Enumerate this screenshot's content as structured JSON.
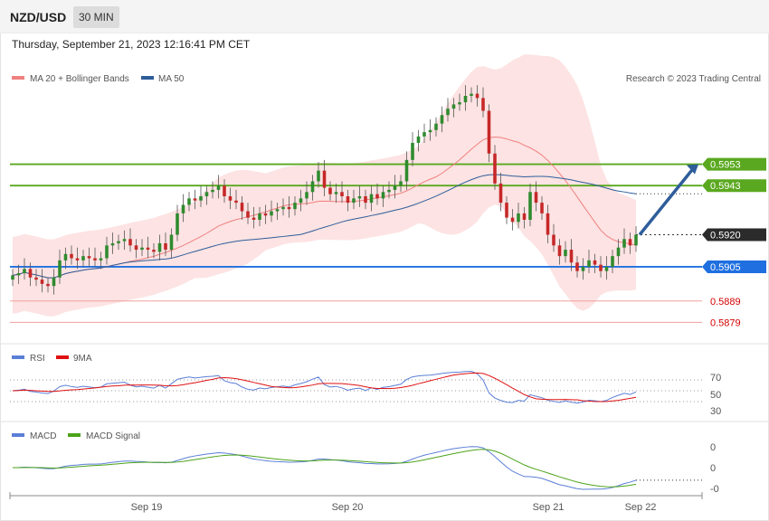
{
  "header": {
    "symbol": "NZD/USD",
    "interval": "30 MIN",
    "datetime": "Thursday, September 21, 2023 12:16:41 PM CET"
  },
  "main_legend": {
    "ma20_label": "MA 20 + Bollinger Bands",
    "ma50_label": "MA 50",
    "credit": "Research © 2023 Trading Central",
    "ma20_color": "#f08080",
    "ma50_color": "#2e5d9a"
  },
  "rsi_legend": {
    "rsi_label": "RSI",
    "ma_label": "9MA",
    "rsi_color": "#5b7fd6",
    "ma_color": "#e01010"
  },
  "macd_legend": {
    "macd_label": "MACD",
    "signal_label": "MACD Signal",
    "macd_color": "#5b7fd6",
    "signal_color": "#4ca31a"
  },
  "x_labels": [
    "Sep 19",
    "Sep 20",
    "Sep 21",
    "Sep 22"
  ],
  "levels": [
    {
      "value": "0.5953",
      "type": "resistance",
      "color": "#5aa81f"
    },
    {
      "value": "0.5943",
      "type": "resistance",
      "color": "#5aa81f"
    },
    {
      "value": "0.5920",
      "type": "last",
      "color": "#2b2b2b"
    },
    {
      "value": "0.5905",
      "type": "pivot",
      "color": "#1f6fe0"
    },
    {
      "value": "0.5889",
      "type": "support",
      "color": "#d40000"
    },
    {
      "value": "0.5879",
      "type": "support",
      "color": "#d40000"
    }
  ],
  "rsi_ticks": [
    "70",
    "50",
    "30"
  ],
  "macd_ticks": [
    "0",
    "0",
    "-0"
  ],
  "chart_data": {
    "type": "candlestick",
    "price": {
      "close": [
        0.5901,
        0.5902,
        0.5904,
        0.59,
        0.5899,
        0.5897,
        0.5896,
        0.59,
        0.5908,
        0.5911,
        0.5909,
        0.5908,
        0.591,
        0.5909,
        0.5908,
        0.5909,
        0.5915,
        0.5916,
        0.5917,
        0.5918,
        0.5915,
        0.5913,
        0.5914,
        0.5913,
        0.5912,
        0.5916,
        0.5913,
        0.592,
        0.593,
        0.5934,
        0.5937,
        0.5936,
        0.5938,
        0.594,
        0.5941,
        0.5943,
        0.5938,
        0.5936,
        0.5935,
        0.5931,
        0.5928,
        0.5927,
        0.593,
        0.5929,
        0.5931,
        0.5932,
        0.5933,
        0.5932,
        0.5935,
        0.5937,
        0.594,
        0.5945,
        0.595,
        0.5942,
        0.5939,
        0.594,
        0.5938,
        0.5935,
        0.5937,
        0.5938,
        0.5935,
        0.5939,
        0.5937,
        0.594,
        0.5941,
        0.5943,
        0.5945,
        0.5955,
        0.5963,
        0.5966,
        0.5968,
        0.5969,
        0.5972,
        0.5976,
        0.5979,
        0.5981,
        0.5982,
        0.5985,
        0.5986,
        0.5984,
        0.5978,
        0.5958,
        0.5944,
        0.5935,
        0.5928,
        0.5926,
        0.593,
        0.5927,
        0.594,
        0.5935,
        0.593,
        0.592,
        0.5915,
        0.591,
        0.5913,
        0.5907,
        0.5903,
        0.5905,
        0.5908,
        0.5906,
        0.5903,
        0.5905,
        0.591,
        0.5914,
        0.5918,
        0.5915,
        0.592
      ],
      "bb_upper": 0.5992,
      "bb_lower": 0.5897,
      "ma20_last": 0.5915,
      "ma50_last": 0.5935,
      "y_range": [
        0.5869,
        0.5996
      ]
    },
    "rsi": {
      "range": [
        0,
        100
      ],
      "guides": [
        70,
        50,
        30
      ],
      "last": 53,
      "ma_last": 45
    },
    "macd": {
      "zero_line": 0
    },
    "x_tick_labels": [
      "Sep 19",
      "Sep 20",
      "Sep 21",
      "Sep 22"
    ],
    "forecast_arrow": {
      "from": 0.592,
      "to": 0.5953
    }
  }
}
